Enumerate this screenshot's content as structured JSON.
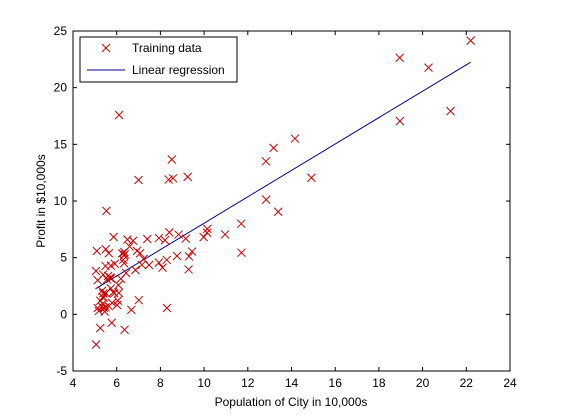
{
  "chart_data": {
    "type": "scatter",
    "title": "",
    "xlabel": "Population of City in 10,000s",
    "ylabel": "Profit in $10,000s",
    "xlim": [
      4,
      24
    ],
    "ylim": [
      -5,
      25
    ],
    "xticks": [
      4,
      6,
      8,
      10,
      12,
      14,
      16,
      18,
      20,
      22,
      24
    ],
    "yticks": [
      -5,
      0,
      5,
      10,
      15,
      20,
      25
    ],
    "grid": false,
    "legend_placement": "top-left",
    "colors": {
      "markers": "#cc0000",
      "line": "#00008b"
    },
    "series": [
      {
        "name": "Training data",
        "kind": "scatter",
        "marker": "x",
        "points": [
          [
            6.11,
            17.59
          ],
          [
            5.53,
            9.13
          ],
          [
            8.52,
            13.66
          ],
          [
            7.0,
            11.85
          ],
          [
            5.86,
            6.82
          ],
          [
            8.38,
            11.89
          ],
          [
            7.48,
            4.35
          ],
          [
            8.58,
            12.0
          ],
          [
            6.49,
            6.6
          ],
          [
            5.05,
            3.82
          ],
          [
            5.71,
            3.25
          ],
          [
            14.16,
            15.51
          ],
          [
            5.73,
            3.16
          ],
          [
            8.41,
            7.23
          ],
          [
            5.64,
            0.72
          ],
          [
            5.38,
            3.51
          ],
          [
            6.37,
            5.3
          ],
          [
            5.13,
            0.56
          ],
          [
            6.43,
            3.65
          ],
          [
            7.07,
            5.39
          ],
          [
            6.19,
            3.14
          ],
          [
            20.27,
            21.77
          ],
          [
            5.49,
            4.26
          ],
          [
            6.33,
            5.19
          ],
          [
            5.56,
            3.08
          ],
          [
            18.95,
            22.64
          ],
          [
            12.83,
            13.5
          ],
          [
            10.96,
            7.05
          ],
          [
            13.18,
            14.69
          ],
          [
            22.2,
            24.15
          ],
          [
            5.25,
            -1.22
          ],
          [
            6.59,
            5.99
          ],
          [
            9.25,
            12.13
          ],
          [
            5.89,
            1.85
          ],
          [
            8.21,
            6.54
          ],
          [
            7.93,
            4.56
          ],
          [
            8.1,
            4.12
          ],
          [
            5.61,
            3.39
          ],
          [
            12.84,
            10.12
          ],
          [
            6.35,
            5.5
          ],
          [
            5.41,
            0.56
          ],
          [
            6.86,
            3.91
          ],
          [
            5.64,
            5.39
          ],
          [
            9.31,
            5.11
          ],
          [
            9.45,
            5.54
          ],
          [
            8.83,
            7.04
          ],
          [
            5.18,
            0.29
          ],
          [
            21.28,
            17.93
          ],
          [
            14.91,
            12.05
          ],
          [
            18.96,
            17.05
          ],
          [
            7.23,
            4.89
          ],
          [
            5.5,
            5.74
          ],
          [
            7.93,
            6.73
          ],
          [
            6.34,
            4.51
          ],
          [
            6.1,
            1.89
          ],
          [
            5.73,
            2.29
          ],
          [
            5.32,
            0.68
          ],
          [
            5.79,
            1.01
          ],
          [
            9.16,
            6.68
          ],
          [
            6.08,
            2.58
          ],
          [
            5.45,
            0.24
          ],
          [
            8.3,
            0.56
          ],
          [
            5.13,
            3.01
          ],
          [
            5.91,
            4.46
          ],
          [
            7.01,
            1.25
          ],
          [
            5.09,
            5.59
          ],
          [
            5.4,
            1.44
          ],
          [
            5.06,
            -2.66
          ],
          [
            5.77,
            -0.74
          ],
          [
            5.33,
            2.08
          ],
          [
            6.36,
            -1.36
          ],
          [
            9.29,
            3.96
          ],
          [
            5.49,
            0.62
          ],
          [
            5.37,
            1.52
          ],
          [
            6.93,
            5.6
          ],
          [
            5.5,
            1.86
          ],
          [
            10.15,
            7.54
          ],
          [
            5.73,
            4.3
          ],
          [
            8.76,
            5.15
          ],
          [
            5.39,
            1.84
          ],
          [
            11.7,
            8.0
          ],
          [
            5.84,
            1.95
          ],
          [
            7.15,
            4.37
          ],
          [
            5.36,
            0.96
          ],
          [
            8.29,
            4.8
          ],
          [
            5.25,
            1.2
          ],
          [
            6.02,
            0.82
          ],
          [
            6.75,
            6.49
          ],
          [
            7.4,
            6.65
          ],
          [
            9.98,
            6.81
          ],
          [
            11.71,
            5.44
          ],
          [
            6.25,
            5.38
          ],
          [
            13.39,
            9.05
          ],
          [
            6.05,
            1.21
          ],
          [
            6.67,
            0.39
          ],
          [
            10.14,
            7.21
          ],
          [
            6.3,
            4.81
          ]
        ]
      },
      {
        "name": "Linear regression",
        "kind": "line",
        "points": [
          [
            5.03,
            2.25
          ],
          [
            22.2,
            22.25
          ]
        ]
      }
    ]
  }
}
